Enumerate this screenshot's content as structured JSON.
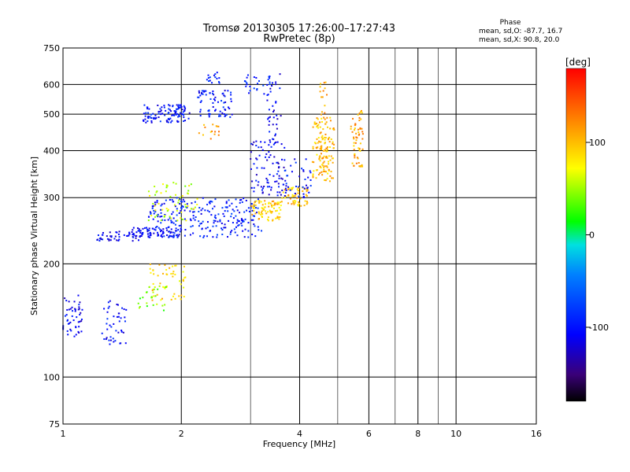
{
  "title_line1": "Tromsø 20130305 17:26:00–17:27:43",
  "title_line2": "RwPretec (8p)",
  "phase_info": {
    "label": "Phase",
    "line_o": "mean, sd,O: -87.7, 16.7",
    "line_x": "mean, sd,X:  90.8, 20.0"
  },
  "chart_data": {
    "type": "scatter",
    "xlabel": "Frequency [MHz]",
    "ylabel": "Stationary phase Virtual Height [km]",
    "x_scale": "log",
    "y_scale": "log",
    "xlim": [
      1,
      16
    ],
    "ylim": [
      75,
      750
    ],
    "x_ticks": [
      1,
      2,
      4,
      6,
      8,
      10,
      16
    ],
    "x_gridlines": [
      2,
      4,
      6,
      8,
      10
    ],
    "x_minor_gridlines": [
      3,
      5,
      7,
      9
    ],
    "y_ticks": [
      75,
      100,
      200,
      300,
      400,
      500,
      600,
      750
    ],
    "grid": true,
    "colorbar": {
      "label": "[deg]",
      "range": [
        -180,
        180
      ],
      "ticks": [
        100,
        0,
        -100
      ],
      "colormap": "rainbow"
    },
    "clusters": [
      {
        "f": [
          1.0,
          1.12
        ],
        "h": [
          125,
          165
        ],
        "phase": -110,
        "n": 50
      },
      {
        "f": [
          1.25,
          1.45
        ],
        "h": [
          122,
          160
        ],
        "phase": -105,
        "n": 45
      },
      {
        "f": [
          1.22,
          1.6
        ],
        "h": [
          230,
          245
        ],
        "phase": -110,
        "n": 55
      },
      {
        "f": [
          1.5,
          2.0
        ],
        "h": [
          235,
          250
        ],
        "phase": -108,
        "n": 70
      },
      {
        "f": [
          1.65,
          3.2
        ],
        "h": [
          235,
          300
        ],
        "phase": -95,
        "n": 250
      },
      {
        "f": [
          1.65,
          2.2
        ],
        "h": [
          260,
          330
        ],
        "phase": 60,
        "n": 60
      },
      {
        "f": [
          1.65,
          2.05
        ],
        "h": [
          160,
          200
        ],
        "phase": 90,
        "n": 55
      },
      {
        "f": [
          1.55,
          1.85
        ],
        "h": [
          150,
          175
        ],
        "phase": 40,
        "n": 25
      },
      {
        "f": [
          1.6,
          2.1
        ],
        "h": [
          475,
          530
        ],
        "phase": -100,
        "n": 110
      },
      {
        "f": [
          2.2,
          2.7
        ],
        "h": [
          490,
          580
        ],
        "phase": -100,
        "n": 70
      },
      {
        "f": [
          2.3,
          2.5
        ],
        "h": [
          600,
          650
        ],
        "phase": -95,
        "n": 15
      },
      {
        "f": [
          2.2,
          2.5
        ],
        "h": [
          430,
          470
        ],
        "phase": 110,
        "n": 15
      },
      {
        "f": [
          3.0,
          3.6
        ],
        "h": [
          260,
          295
        ],
        "phase": 95,
        "n": 80
      },
      {
        "f": [
          3.6,
          4.2
        ],
        "h": [
          285,
          320
        ],
        "phase": 100,
        "n": 60
      },
      {
        "f": [
          3.0,
          3.7
        ],
        "h": [
          300,
          430
        ],
        "phase": -110,
        "n": 90
      },
      {
        "f": [
          3.3,
          3.6
        ],
        "h": [
          420,
          640
        ],
        "phase": -110,
        "n": 35
      },
      {
        "f": [
          2.9,
          3.4
        ],
        "h": [
          560,
          640
        ],
        "phase": -95,
        "n": 25
      },
      {
        "f": [
          3.6,
          4.3
        ],
        "h": [
          300,
          380
        ],
        "phase": -100,
        "n": 40
      },
      {
        "f": [
          4.3,
          4.9
        ],
        "h": [
          330,
          490
        ],
        "phase": 100,
        "n": 120
      },
      {
        "f": [
          4.5,
          4.7
        ],
        "h": [
          380,
          610
        ],
        "phase": 110,
        "n": 40
      },
      {
        "f": [
          5.4,
          5.8
        ],
        "h": [
          360,
          520
        ],
        "phase": 110,
        "n": 60
      }
    ]
  }
}
